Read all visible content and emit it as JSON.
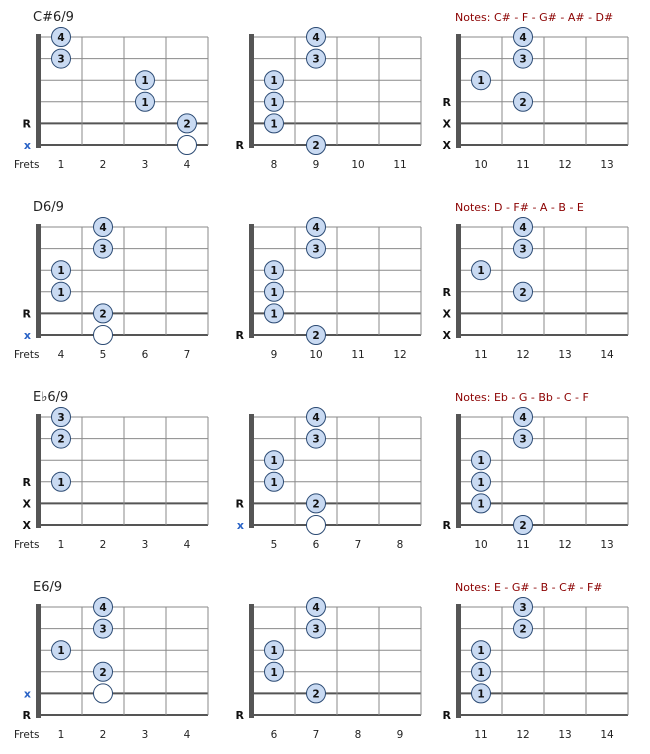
{
  "frets_label": "Frets",
  "colors": {
    "dot_fill": "#c9daf2",
    "dot_stroke": "#2b4a73",
    "string_line": "#8a8a8a",
    "nut": "#555555",
    "notes_text": "#8b0000",
    "blue_x": "#2a63c6",
    "title": "#222222"
  },
  "rows": [
    {
      "title": "C#6/9",
      "notes": "Notes:  C# - F - G# - A# - D#",
      "diagrams": [
        {
          "frets": [
            "1",
            "2",
            "3",
            "4"
          ],
          "nut": true,
          "dots": [
            [
              5,
              1,
              "4"
            ],
            [
              4,
              1,
              "3"
            ],
            [
              3,
              3,
              "1"
            ],
            [
              2,
              3,
              "1"
            ],
            [
              1,
              4,
              "2"
            ],
            [
              0,
              4,
              ""
            ]
          ],
          "marks": [
            [
              1,
              "R",
              "k"
            ],
            [
              0,
              "x",
              "b"
            ]
          ]
        },
        {
          "frets": [
            "8",
            "9",
            "10",
            "11"
          ],
          "nut": false,
          "dots": [
            [
              5,
              2,
              "4"
            ],
            [
              4,
              2,
              "3"
            ],
            [
              3,
              1,
              "1"
            ],
            [
              2,
              1,
              "1"
            ],
            [
              1,
              1,
              "1"
            ],
            [
              0,
              2,
              "2"
            ]
          ],
          "marks": [
            [
              0,
              "R",
              "k"
            ]
          ]
        },
        {
          "frets": [
            "10",
            "11",
            "12",
            "13"
          ],
          "nut": false,
          "dots": [
            [
              5,
              2,
              "4"
            ],
            [
              4,
              2,
              "3"
            ],
            [
              3,
              1,
              "1"
            ],
            [
              2,
              2,
              "2"
            ]
          ],
          "marks": [
            [
              2,
              "R",
              "k"
            ],
            [
              1,
              "X",
              "k"
            ],
            [
              0,
              "X",
              "k"
            ]
          ]
        }
      ]
    },
    {
      "title": "D6/9",
      "notes": "Notes: D - F# - A - B - E",
      "diagrams": [
        {
          "frets": [
            "4",
            "5",
            "6",
            "7"
          ],
          "nut": false,
          "dots": [
            [
              5,
              2,
              "4"
            ],
            [
              4,
              2,
              "3"
            ],
            [
              3,
              1,
              "1"
            ],
            [
              2,
              1,
              "1"
            ],
            [
              1,
              2,
              "2"
            ],
            [
              0,
              2,
              ""
            ]
          ],
          "marks": [
            [
              1,
              "R",
              "k"
            ],
            [
              0,
              "x",
              "b"
            ]
          ]
        },
        {
          "frets": [
            "9",
            "10",
            "11",
            "12"
          ],
          "nut": false,
          "dots": [
            [
              5,
              2,
              "4"
            ],
            [
              4,
              2,
              "3"
            ],
            [
              3,
              1,
              "1"
            ],
            [
              2,
              1,
              "1"
            ],
            [
              1,
              1,
              "1"
            ],
            [
              0,
              2,
              "2"
            ]
          ],
          "marks": [
            [
              0,
              "R",
              "k"
            ]
          ]
        },
        {
          "frets": [
            "11",
            "12",
            "13",
            "14"
          ],
          "nut": false,
          "dots": [
            [
              5,
              2,
              "4"
            ],
            [
              4,
              2,
              "3"
            ],
            [
              3,
              1,
              "1"
            ],
            [
              2,
              2,
              "2"
            ]
          ],
          "marks": [
            [
              2,
              "R",
              "k"
            ],
            [
              1,
              "X",
              "k"
            ],
            [
              0,
              "X",
              "k"
            ]
          ]
        }
      ]
    },
    {
      "title": "E♭6/9",
      "notes": "Notes:  Eb - G - Bb - C - F",
      "diagrams": [
        {
          "frets": [
            "1",
            "2",
            "3",
            "4"
          ],
          "nut": true,
          "dots": [
            [
              5,
              1,
              "3"
            ],
            [
              4,
              1,
              "2"
            ],
            [
              2,
              1,
              "1"
            ]
          ],
          "marks": [
            [
              2,
              "R",
              "k"
            ],
            [
              1,
              "X",
              "k"
            ],
            [
              0,
              "X",
              "k"
            ]
          ]
        },
        {
          "frets": [
            "5",
            "6",
            "7",
            "8"
          ],
          "nut": false,
          "dots": [
            [
              5,
              2,
              "4"
            ],
            [
              4,
              2,
              "3"
            ],
            [
              3,
              1,
              "1"
            ],
            [
              2,
              1,
              "1"
            ],
            [
              1,
              2,
              "2"
            ],
            [
              0,
              2,
              ""
            ]
          ],
          "marks": [
            [
              1,
              "R",
              "k"
            ],
            [
              0,
              "x",
              "b"
            ]
          ]
        },
        {
          "frets": [
            "10",
            "11",
            "12",
            "13"
          ],
          "nut": false,
          "dots": [
            [
              5,
              2,
              "4"
            ],
            [
              4,
              2,
              "3"
            ],
            [
              3,
              1,
              "1"
            ],
            [
              2,
              1,
              "1"
            ],
            [
              1,
              1,
              "1"
            ],
            [
              0,
              2,
              "2"
            ]
          ],
          "marks": [
            [
              0,
              "R",
              "k"
            ]
          ]
        }
      ]
    },
    {
      "title": "E6/9",
      "notes": "Notes: E - G# - B - C# - F#",
      "diagrams": [
        {
          "frets": [
            "1",
            "2",
            "3",
            "4"
          ],
          "nut": true,
          "dots": [
            [
              5,
              2,
              "4"
            ],
            [
              4,
              2,
              "3"
            ],
            [
              3,
              1,
              "1"
            ],
            [
              2,
              2,
              "2"
            ],
            [
              1,
              2,
              ""
            ]
          ],
          "marks": [
            [
              1,
              "x",
              "b"
            ],
            [
              0,
              "R",
              "k"
            ]
          ]
        },
        {
          "frets": [
            "6",
            "7",
            "8",
            "9"
          ],
          "nut": false,
          "dots": [
            [
              5,
              2,
              "4"
            ],
            [
              4,
              2,
              "3"
            ],
            [
              3,
              1,
              "1"
            ],
            [
              2,
              1,
              "1"
            ],
            [
              1,
              2,
              "2"
            ]
          ],
          "marks": [
            [
              0,
              "R",
              "k"
            ]
          ]
        },
        {
          "frets": [
            "11",
            "12",
            "13",
            "14"
          ],
          "nut": false,
          "dots": [
            [
              5,
              2,
              "3"
            ],
            [
              4,
              2,
              "2"
            ],
            [
              3,
              1,
              "1"
            ],
            [
              2,
              1,
              "1"
            ],
            [
              1,
              1,
              "1"
            ]
          ],
          "marks": [
            [
              0,
              "R",
              "k"
            ]
          ]
        }
      ]
    }
  ]
}
